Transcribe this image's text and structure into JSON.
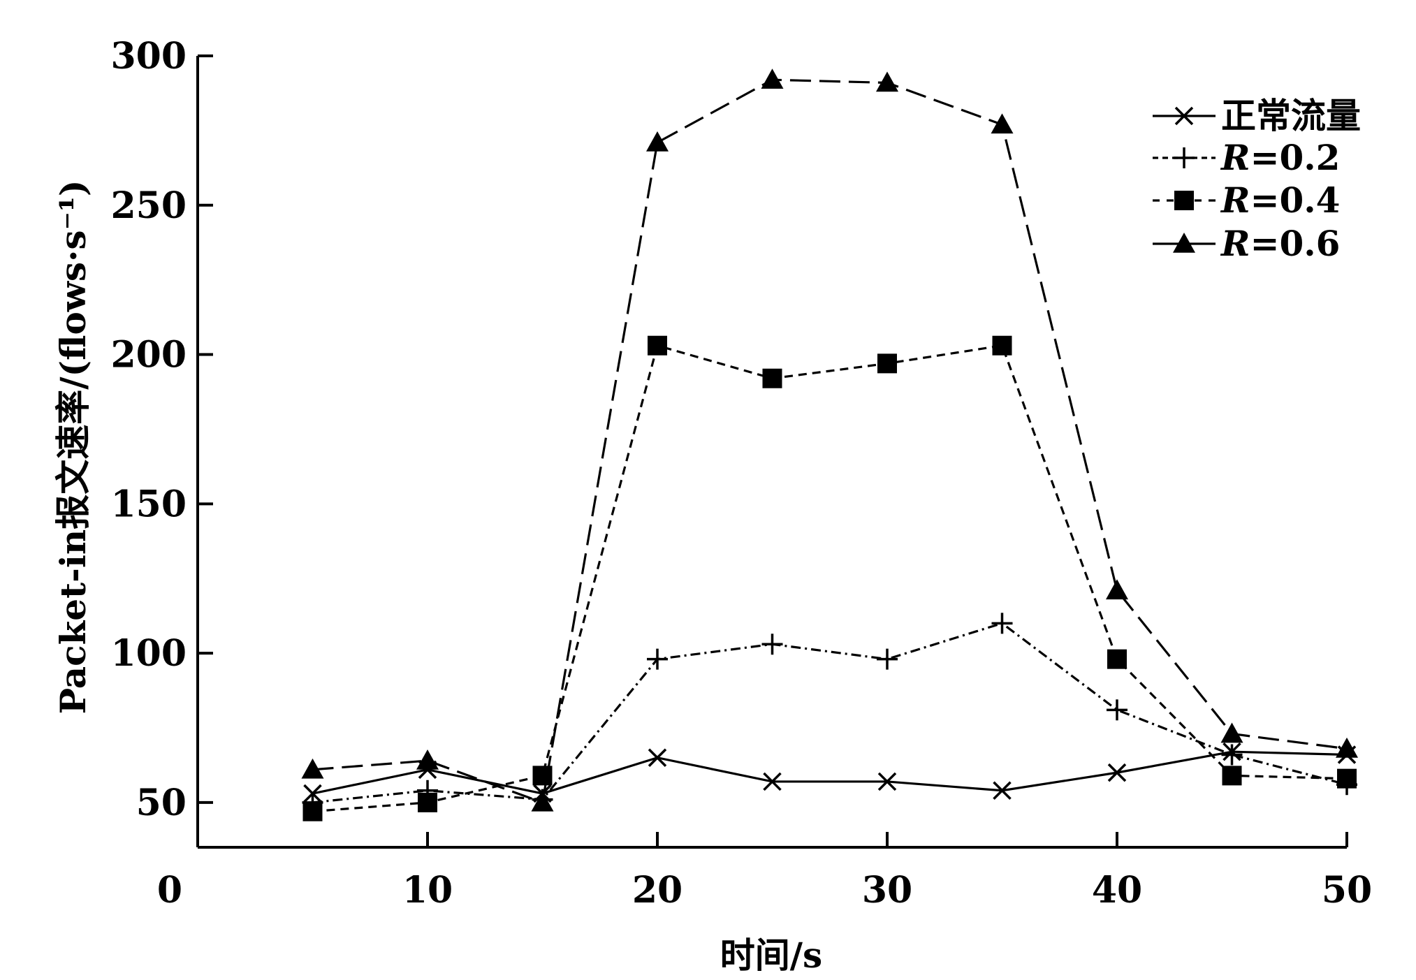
{
  "chart_data": {
    "type": "line",
    "x": [
      5,
      10,
      15,
      20,
      25,
      30,
      35,
      40,
      45,
      50
    ],
    "xlabel": "时间/s",
    "ylabel": "Packet-in报文速率/(flows·s⁻¹)",
    "x_ticks": [
      "0",
      "10",
      "20",
      "30",
      "40",
      "50"
    ],
    "y_ticks": [
      "50",
      "100",
      "150",
      "200",
      "250",
      "300"
    ],
    "xlim": [
      0,
      50
    ],
    "ylim": [
      35,
      300
    ],
    "grid": false,
    "legend_position": "top-right",
    "series": [
      {
        "name": "正常流量",
        "name_prefix": "",
        "name_value": "",
        "marker": "x",
        "dash": "",
        "values": [
          53,
          61,
          53,
          65,
          57,
          57,
          54,
          60,
          67,
          66
        ]
      },
      {
        "name": "R=0.2",
        "name_prefix": "R",
        "name_value": "=0.2",
        "marker": "plus",
        "dash": "14 6 3 6",
        "values": [
          50,
          54,
          51,
          98,
          103,
          98,
          110,
          81,
          66,
          56
        ]
      },
      {
        "name": "R=0.4",
        "name_prefix": "R",
        "name_value": "=0.4",
        "marker": "square",
        "dash": "12 8",
        "values": [
          47,
          50,
          59,
          203,
          192,
          197,
          203,
          98,
          59,
          58
        ]
      },
      {
        "name": "R=0.6",
        "name_prefix": "R",
        "name_value": "=0.6",
        "marker": "triangle",
        "dash": "30 12",
        "values": [
          61,
          64,
          50,
          271,
          292,
          291,
          277,
          121,
          73,
          68
        ]
      }
    ]
  }
}
